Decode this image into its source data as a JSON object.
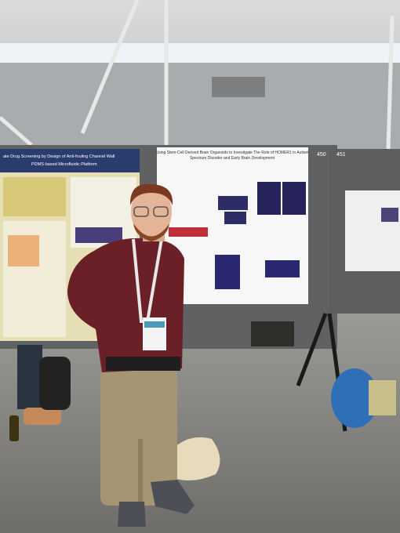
{
  "scene": {
    "posters": [
      {
        "title": "ate Drug Screening by Design of Anti-fouling Channel Wall",
        "subtitle": "PDMS-based Microfluidic Platform"
      },
      {
        "title": "Using Stem-Cell Derived Brain Organoids to Investigate The Role of HOMER1 in Autism",
        "subtitle": "Spectrum Disorder and Early Brain Development"
      }
    ],
    "board_numbers": [
      "450",
      "451"
    ]
  }
}
